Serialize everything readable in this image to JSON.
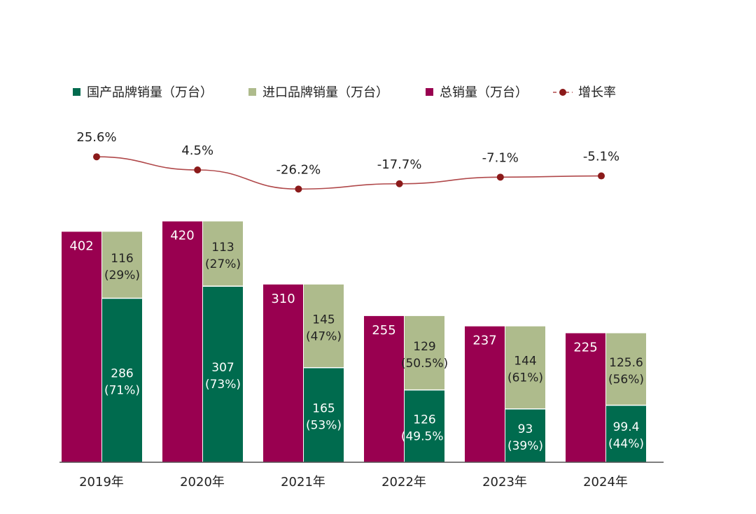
{
  "chart_data": {
    "type": "bar",
    "categories": [
      "2019年",
      "2020年",
      "2021年",
      "2022年",
      "2023年",
      "2024年"
    ],
    "series": [
      {
        "name": "国产品牌销量（万台）",
        "values": [
          286,
          307,
          165,
          126,
          93,
          99.4
        ],
        "labels": [
          "286",
          "307",
          "165",
          "126",
          "93",
          "99.4"
        ],
        "share_labels": [
          "(71%)",
          "(73%)",
          "(53%)",
          "(49.5%)",
          "(39%)",
          "(44%)"
        ],
        "color": "#006B4E"
      },
      {
        "name": "进口品牌销量（万台）",
        "values": [
          116,
          113,
          145,
          129,
          144,
          125.6
        ],
        "labels": [
          "116",
          "113",
          "145",
          "129",
          "144",
          "125.6"
        ],
        "share_labels": [
          "(29%)",
          "(27%)",
          "(47%)",
          "(50.5%)",
          "(61%)",
          "(56%)"
        ],
        "color": "#AEBB8C"
      },
      {
        "name": "总销量（万台）",
        "values": [
          402,
          420,
          310,
          255,
          237,
          225
        ],
        "labels": [
          "402",
          "420",
          "310",
          "255",
          "237",
          "225"
        ],
        "color": "#990050"
      },
      {
        "name": "增长率",
        "type": "line",
        "values": [
          25.6,
          4.5,
          -26.2,
          -17.7,
          -7.1,
          -5.1
        ],
        "labels": [
          "25.6%",
          "4.5%",
          "-26.2%",
          "-17.7%",
          "-7.1%",
          "-5.1%"
        ],
        "color": "#8B1A1A"
      }
    ],
    "ylim": [
      0,
      420
    ],
    "grid": false,
    "legend_position": "top-left"
  }
}
